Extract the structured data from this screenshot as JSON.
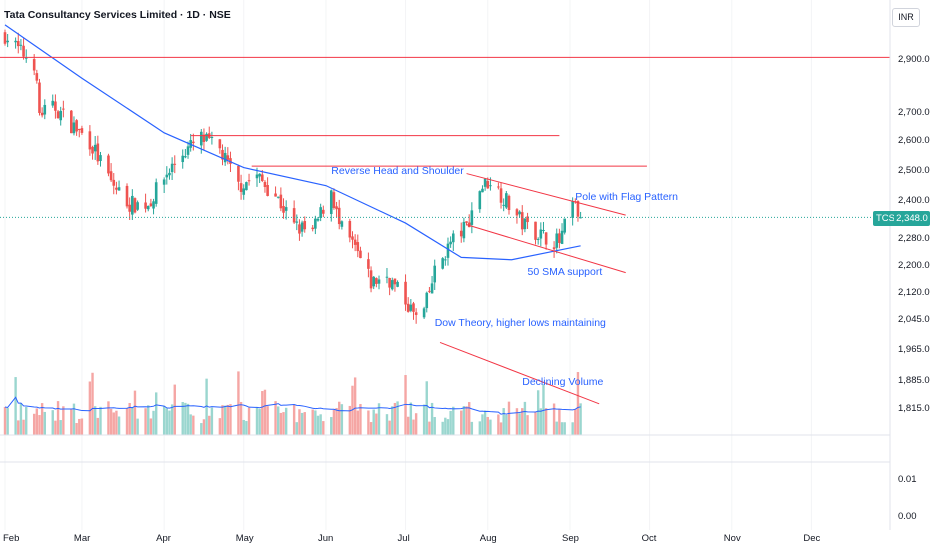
{
  "header": {
    "title": "Tata Consultancy Services Limited · 1D · NSE",
    "currency": "INR"
  },
  "price_tag": {
    "symbol": "TCS",
    "value": "2,348.0"
  },
  "colors": {
    "up": "#26a69a",
    "down": "#ef5350",
    "sma": "#2962ff",
    "lines": "#f23645",
    "volume_up": "#9ad6cf",
    "volume_down": "#f5a6a4"
  },
  "annotations": [
    {
      "text": "Reverse Head and Shoulder",
      "date": "2024-06-03",
      "price": 2495
    },
    {
      "text": "Pole with Flag Pattern",
      "date": "2024-09-03",
      "price": 2410
    },
    {
      "text": "50 SMA support",
      "date": "2024-08-16",
      "price": 2180
    },
    {
      "text": "Dow Theory, higher lows maintaining",
      "date": "2024-07-12",
      "price": 2035
    },
    {
      "text": "Declining Volume",
      "date": "2024-08-14",
      "price": 1880
    }
  ],
  "chart_data": {
    "type": "candlestick",
    "title": "Tata Consultancy Services Limited · 1D · NSE",
    "y_axis": {
      "scale": "log",
      "unit": "INR",
      "ticks": [
        "2,900.0",
        "2,700.0",
        "2,600.0",
        "2,500.0",
        "2,400.0",
        "2,280.0",
        "2,200.0",
        "2,120.0",
        "2,045.0",
        "1,965.0",
        "1,885.0",
        "1,815.0"
      ]
    },
    "lower_pane_ticks": [
      "0.01",
      "0.00"
    ],
    "x_axis": {
      "ticks": [
        "Feb",
        "Mar",
        "Apr",
        "May",
        "Jun",
        "Jul",
        "Aug",
        "Sep",
        "Oct",
        "Nov",
        "Dec"
      ]
    },
    "close_path": [
      {
        "date": "2024-02-01",
        "close": 3000
      },
      {
        "date": "2024-02-07",
        "close": 2930
      },
      {
        "date": "2024-02-12",
        "close": 2890
      },
      {
        "date": "2024-02-14",
        "close": 2700
      },
      {
        "date": "2024-02-20",
        "close": 2720
      },
      {
        "date": "2024-02-26",
        "close": 2660
      },
      {
        "date": "2024-03-04",
        "close": 2600
      },
      {
        "date": "2024-03-12",
        "close": 2460
      },
      {
        "date": "2024-03-19",
        "close": 2390
      },
      {
        "date": "2024-03-26",
        "close": 2390
      },
      {
        "date": "2024-04-02",
        "close": 2490
      },
      {
        "date": "2024-04-08",
        "close": 2560
      },
      {
        "date": "2024-04-15",
        "close": 2610
      },
      {
        "date": "2024-04-22",
        "close": 2570
      },
      {
        "date": "2024-04-29",
        "close": 2450
      },
      {
        "date": "2024-05-06",
        "close": 2480
      },
      {
        "date": "2024-05-13",
        "close": 2420
      },
      {
        "date": "2024-05-20",
        "close": 2320
      },
      {
        "date": "2024-05-27",
        "close": 2300
      },
      {
        "date": "2024-06-03",
        "close": 2440
      },
      {
        "date": "2024-06-06",
        "close": 2320
      },
      {
        "date": "2024-06-12",
        "close": 2250
      },
      {
        "date": "2024-06-18",
        "close": 2150
      },
      {
        "date": "2024-06-24",
        "close": 2170
      },
      {
        "date": "2024-07-01",
        "close": 2100
      },
      {
        "date": "2024-07-05",
        "close": 2050
      },
      {
        "date": "2024-07-08",
        "close": 2070
      },
      {
        "date": "2024-07-12",
        "close": 2180
      },
      {
        "date": "2024-07-18",
        "close": 2270
      },
      {
        "date": "2024-07-24",
        "close": 2320
      },
      {
        "date": "2024-07-29",
        "close": 2440
      },
      {
        "date": "2024-08-02",
        "close": 2470
      },
      {
        "date": "2024-08-08",
        "close": 2400
      },
      {
        "date": "2024-08-14",
        "close": 2330
      },
      {
        "date": "2024-08-22",
        "close": 2290
      },
      {
        "date": "2024-08-28",
        "close": 2270
      },
      {
        "date": "2024-09-02",
        "close": 2390
      },
      {
        "date": "2024-09-05",
        "close": 2348
      }
    ],
    "sma50": [
      {
        "date": "2024-02-01",
        "value": 3040
      },
      {
        "date": "2024-03-01",
        "value": 2830
      },
      {
        "date": "2024-04-01",
        "value": 2630
      },
      {
        "date": "2024-05-01",
        "value": 2510
      },
      {
        "date": "2024-06-01",
        "value": 2450
      },
      {
        "date": "2024-07-01",
        "value": 2330
      },
      {
        "date": "2024-07-22",
        "value": 2225
      },
      {
        "date": "2024-08-10",
        "value": 2218
      },
      {
        "date": "2024-09-05",
        "value": 2260
      }
    ],
    "horizontal_lines": [
      {
        "price": 2910,
        "from": "2024-01-25",
        "to": "2024-12-31"
      },
      {
        "price": 2620,
        "from": "2024-04-11",
        "to": "2024-08-28"
      },
      {
        "price": 2515,
        "from": "2024-05-04",
        "to": "2024-09-30"
      }
    ],
    "trend_lines": [
      {
        "name": "flag-top",
        "from": {
          "date": "2024-07-24",
          "price": 2490
        },
        "to": {
          "date": "2024-09-22",
          "price": 2355
        }
      },
      {
        "name": "flag-bottom",
        "from": {
          "date": "2024-07-24",
          "price": 2325
        },
        "to": {
          "date": "2024-09-22",
          "price": 2180
        }
      },
      {
        "name": "volume-trend",
        "from": {
          "date": "2024-07-14",
          "price": 1985
        },
        "to": {
          "date": "2024-09-12",
          "price": 1828
        }
      }
    ],
    "last_price": 2348.0
  }
}
